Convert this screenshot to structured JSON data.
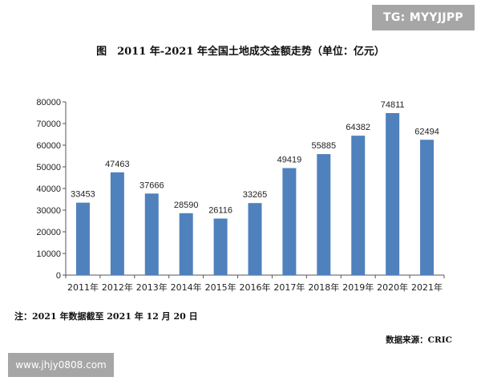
{
  "watermark": {
    "top_right": "TG: MYYJJPP",
    "bottom_left": "www.jhjy0808.com"
  },
  "chart_data": {
    "type": "bar",
    "title": "图　2011 年-2021 年全国土地成交金额走势（单位：亿元）",
    "categories": [
      "2011年",
      "2012年",
      "2013年",
      "2014年",
      "2015年",
      "2016年",
      "2017年",
      "2018年",
      "2019年",
      "2020年",
      "2021年"
    ],
    "values": [
      33453,
      47463,
      37666,
      28590,
      26116,
      33265,
      49419,
      55885,
      64382,
      74811,
      62494
    ],
    "data_labels": [
      "33453",
      "47463",
      "37666",
      "28590",
      "26116",
      "33265",
      "49419",
      "55885",
      "64382",
      "74811",
      "62494"
    ],
    "y_ticks": [
      "0",
      "10000",
      "20000",
      "30000",
      "40000",
      "50000",
      "60000",
      "70000",
      "80000"
    ],
    "ylim": [
      0,
      80000
    ],
    "xlabel": "",
    "ylabel": "",
    "grid": false,
    "legend": false,
    "bar_color": "#4f81bd"
  },
  "footnote": "注：2021 年数据截至 2021 年 12 月 20 日",
  "source": "数据来源：CRIC"
}
